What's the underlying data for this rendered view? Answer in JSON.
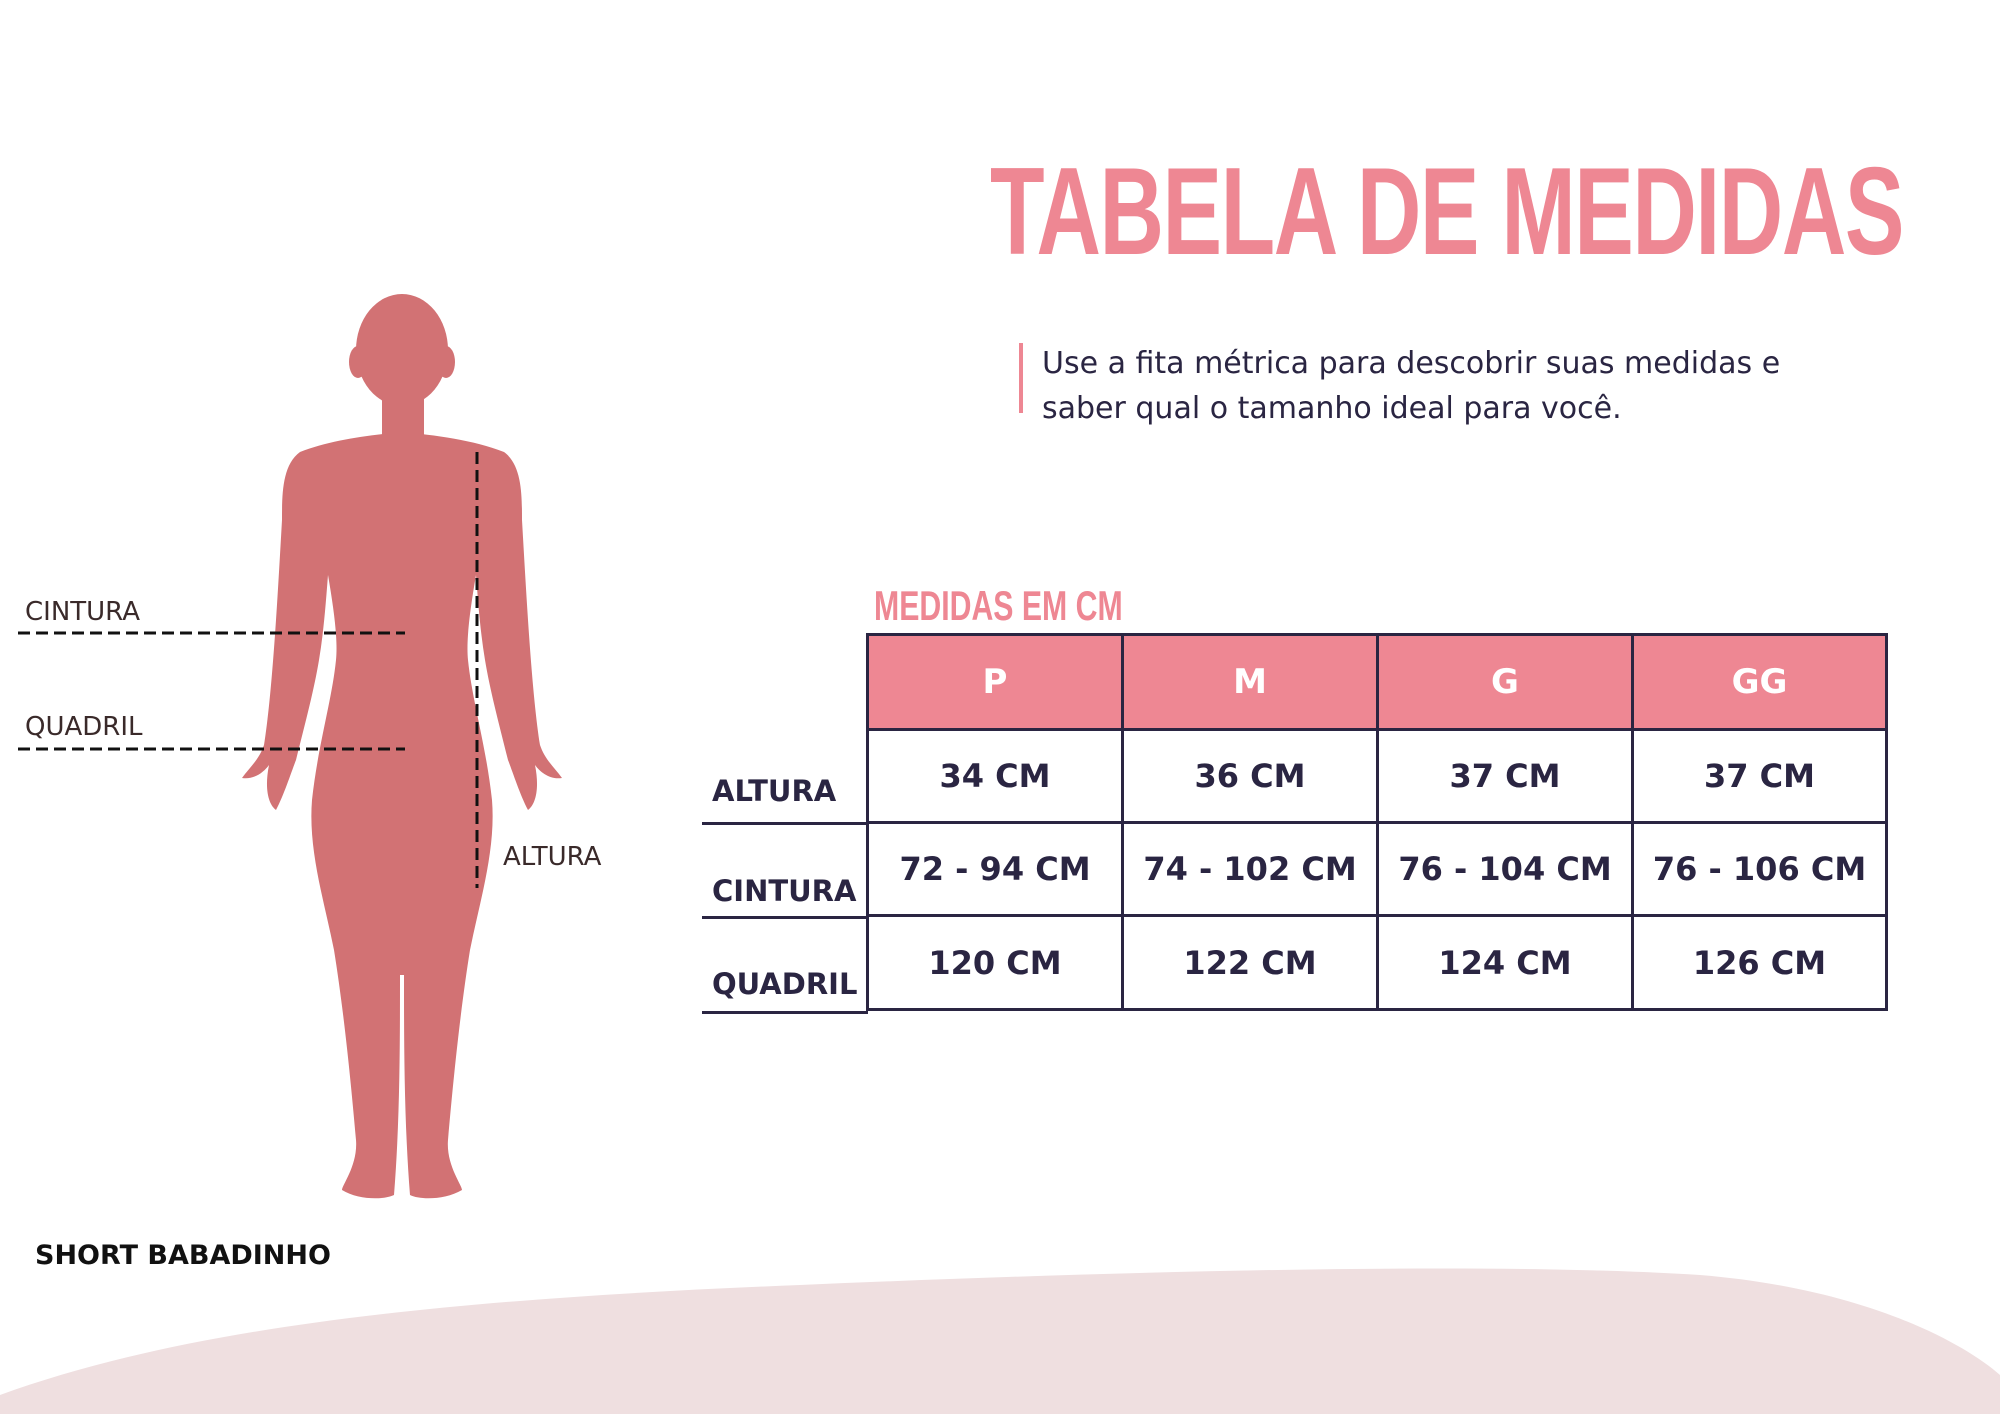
{
  "title": "TABELA DE MEDIDAS",
  "subtitle": "Use a fita métrica para descobrir suas medidas e saber qual o tamanho ideal para você.",
  "units_label": "MEDIDAS EM CM",
  "table": {
    "sizes": [
      "P",
      "M",
      "G",
      "GG"
    ],
    "rows": [
      {
        "label": "ALTURA",
        "values": [
          "34 CM",
          "36 CM",
          "37 CM",
          "37 CM"
        ]
      },
      {
        "label": "CINTURA",
        "values": [
          "72 - 94 CM",
          "74 - 102 CM",
          "76 - 104 CM",
          "76 - 106 CM"
        ]
      },
      {
        "label": "QUADRIL",
        "values": [
          "120 CM",
          "122 CM",
          "124 CM",
          "126 CM"
        ]
      }
    ]
  },
  "figure": {
    "labels": {
      "cintura": "CINTURA",
      "quadril": "QUADRIL",
      "altura": "ALTURA"
    }
  },
  "product_name": "SHORT BABADINHO",
  "colors": {
    "accent": "#ee8793",
    "figure": "#d27274",
    "text_dark": "#2a2542",
    "wave": "#efdfe0"
  }
}
